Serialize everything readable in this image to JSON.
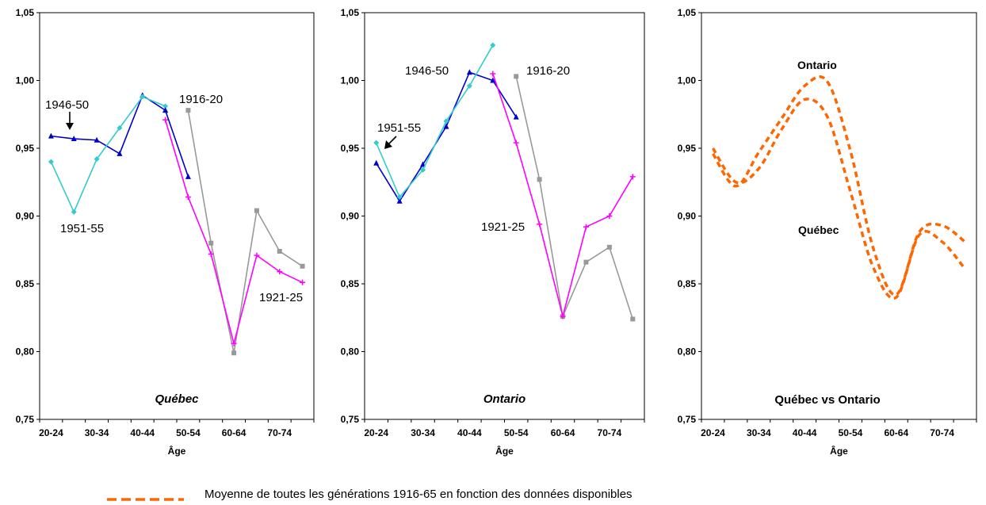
{
  "chart_data": [
    {
      "type": "line",
      "panel_label": "Québec",
      "xlabel": "Âge",
      "ylim": [
        0.75,
        1.05
      ],
      "y_ticks": [
        "0,75",
        "0,80",
        "0,85",
        "0,90",
        "0,95",
        "1,00",
        "1,05"
      ],
      "x_tick_labels": [
        "20-24",
        "30-34",
        "40-44",
        "50-54",
        "60-64",
        "70-74"
      ],
      "age_groups": [
        "20-24",
        "25-29",
        "30-34",
        "35-39",
        "40-44",
        "45-49",
        "50-54",
        "55-59",
        "60-64",
        "65-69",
        "70-74",
        "75-79"
      ],
      "series": [
        {
          "name": "1946-50",
          "color": "#0000cc",
          "marker": "triangle",
          "start": 0,
          "values": [
            0.959,
            0.957,
            0.956,
            0.946,
            0.989,
            0.978
          ]
        },
        {
          "name": "1951-55",
          "color": "#33cccc",
          "marker": "diamond",
          "start": 0,
          "values": [
            0.94,
            0.903,
            0.942,
            0.965,
            0.988,
            0.981
          ]
        },
        {
          "name": "1916-20",
          "color": "#999999",
          "marker": "square",
          "start": 6,
          "values": [
            0.978,
            0.88,
            0.799,
            0.904,
            0.874,
            0.863
          ]
        },
        {
          "name": "1921-25",
          "color": "#ff00ff",
          "marker": "plus",
          "start": 5,
          "values": [
            0.971,
            0.914,
            0.872,
            0.806,
            0.871,
            0.859,
            0.851
          ]
        },
        {
          "name": "",
          "color": "#0000cc",
          "marker": "triangle",
          "start": 5,
          "values": [
            0.978,
            0.929
          ]
        }
      ],
      "annotations": [
        "1946-50",
        "1951-55",
        "1916-20",
        "1921-25"
      ]
    },
    {
      "type": "line",
      "panel_label": "Ontario",
      "xlabel": "Âge",
      "ylim": [
        0.75,
        1.05
      ],
      "y_ticks": [
        "0,75",
        "0,80",
        "0,85",
        "0,90",
        "0,95",
        "1,00",
        "1,05"
      ],
      "x_tick_labels": [
        "20-24",
        "30-34",
        "40-44",
        "50-54",
        "60-64",
        "70-74"
      ],
      "age_groups": [
        "20-24",
        "25-29",
        "30-34",
        "35-39",
        "40-44",
        "45-49",
        "50-54",
        "55-59",
        "60-64",
        "65-69",
        "70-74",
        "75-79"
      ],
      "series": [
        {
          "name": "1946-50",
          "color": "#0000cc",
          "marker": "triangle",
          "start": 0,
          "values": [
            0.939,
            0.911,
            0.938,
            0.966,
            1.006,
            1.0,
            0.973
          ]
        },
        {
          "name": "1951-55",
          "color": "#33cccc",
          "marker": "diamond",
          "start": 0,
          "values": [
            0.954,
            0.914,
            0.934,
            0.97,
            0.996,
            1.026
          ]
        },
        {
          "name": "1916-20",
          "color": "#999999",
          "marker": "square",
          "start": 6,
          "values": [
            1.003,
            0.927,
            0.826,
            0.866,
            0.877,
            0.824
          ]
        },
        {
          "name": "1921-25",
          "color": "#ff00ff",
          "marker": "plus",
          "start": 5,
          "values": [
            1.005,
            0.954,
            0.894,
            0.826,
            0.892,
            0.9,
            0.929
          ]
        }
      ],
      "annotations": [
        "1946-50",
        "1951-55",
        "1916-20",
        "1921-25"
      ]
    },
    {
      "type": "line",
      "panel_label": "Québec vs Ontario",
      "xlabel": "Âge",
      "ylim": [
        0.75,
        1.05
      ],
      "y_ticks": [
        "0,75",
        "0,80",
        "0,85",
        "0,90",
        "0,95",
        "1,00",
        "1,05"
      ],
      "x_tick_labels": [
        "20-24",
        "30-34",
        "40-44",
        "50-54",
        "60-64",
        "70-74"
      ],
      "age_groups": [
        "20-24",
        "25-29",
        "30-34",
        "35-39",
        "40-44",
        "45-49",
        "50-54",
        "55-59",
        "60-64",
        "65-69",
        "70-74",
        "75-79"
      ],
      "series": [
        {
          "name": "Ontario",
          "color": "#ff6600",
          "dashed": true,
          "start": 0,
          "values": [
            0.946,
            0.922,
            0.947,
            0.972,
            0.996,
            0.999,
            0.948,
            0.876,
            0.842,
            0.888,
            0.893,
            0.881
          ]
        },
        {
          "name": "Québec",
          "color": "#ff6600",
          "dashed": true,
          "start": 0,
          "values": [
            0.95,
            0.925,
            0.935,
            0.964,
            0.986,
            0.973,
            0.918,
            0.862,
            0.84,
            0.886,
            0.881,
            0.861
          ]
        }
      ]
    }
  ],
  "legend": {
    "text": "Moyenne de toutes les générations 1916-65 en fonction des données disponibles",
    "color": "#ff6600"
  }
}
